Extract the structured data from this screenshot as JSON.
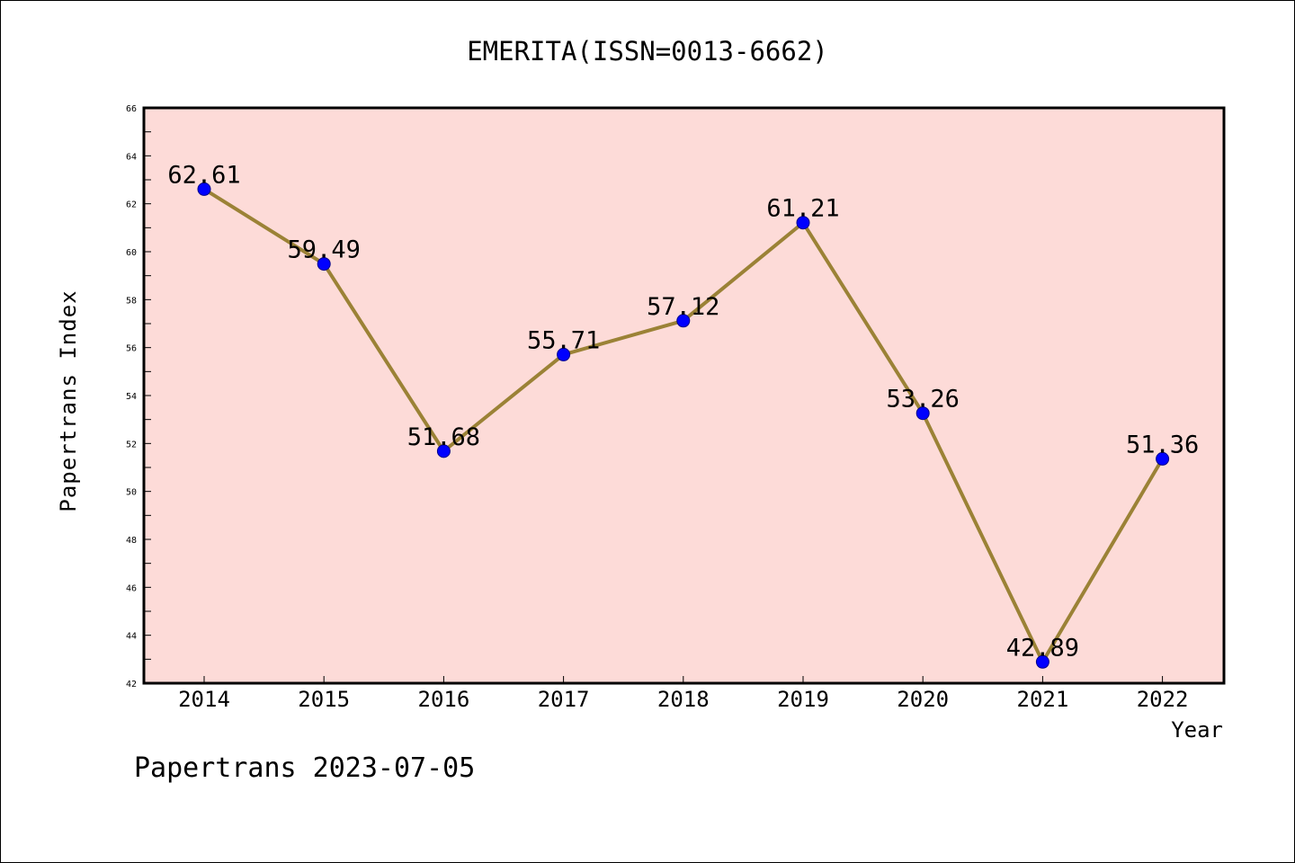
{
  "chart_data": {
    "type": "line",
    "title": "EMERITA(ISSN=0013-6662)",
    "xlabel": "Year",
    "ylabel": "Papertrans Index",
    "categories": [
      "2014",
      "2015",
      "2016",
      "2017",
      "2018",
      "2019",
      "2020",
      "2021",
      "2022"
    ],
    "values": [
      62.61,
      59.49,
      51.68,
      55.71,
      57.12,
      61.21,
      53.26,
      42.89,
      51.36
    ],
    "data_labels": [
      "62.61",
      "59.49",
      "51.68",
      "55.71",
      "57.12",
      "61.21",
      "53.26",
      "42.89",
      "51.36"
    ],
    "ylim": [
      42,
      66
    ],
    "yticks": [
      "42",
      "44",
      "46",
      "48",
      "50",
      "52",
      "54",
      "56",
      "58",
      "60",
      "62",
      "64",
      "66"
    ],
    "grid": false,
    "colors": {
      "plot_background": "#fddbd8",
      "line": "#9b8236",
      "marker": "#0000ff"
    }
  },
  "footer": "Papertrans 2023-07-05"
}
